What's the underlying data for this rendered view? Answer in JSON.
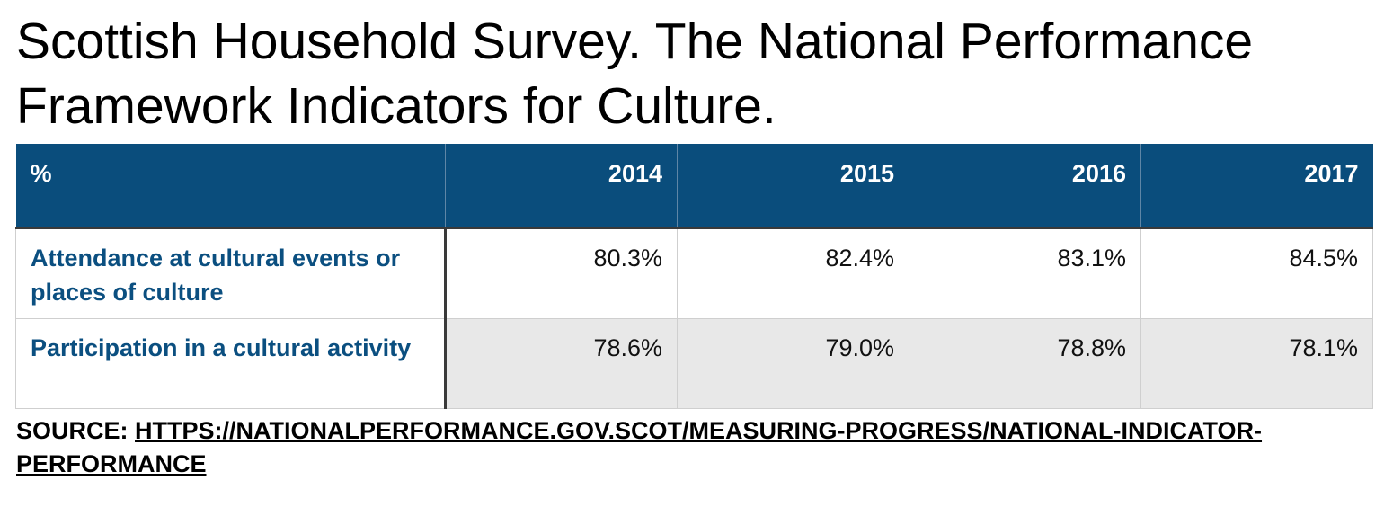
{
  "title": "Scottish Household Survey. The National Performance Framework Indicators for Culture.",
  "table": {
    "header": {
      "label": "%",
      "years": [
        "2014",
        "2015",
        "2016",
        "2017"
      ]
    },
    "rows": [
      {
        "label": "Attendance at cultural events or places of culture",
        "values": [
          "80.3%",
          "82.4%",
          "83.1%",
          "84.5%"
        ]
      },
      {
        "label": "Participation in a cultural activity",
        "values": [
          "78.6%",
          "79.0%",
          "78.8%",
          "78.1%"
        ]
      }
    ]
  },
  "source": {
    "prefix": "SOURCE: ",
    "link_text": "HTTPS://NATIONALPERFORMANCE.GOV.SCOT/MEASURING-PROGRESS/NATIONAL-INDICATOR-PERFORMANCE"
  },
  "colors": {
    "header_background": "#0a4d7c",
    "label_text": "#0b4f80",
    "alt_row_background": "#e8e8e8"
  }
}
